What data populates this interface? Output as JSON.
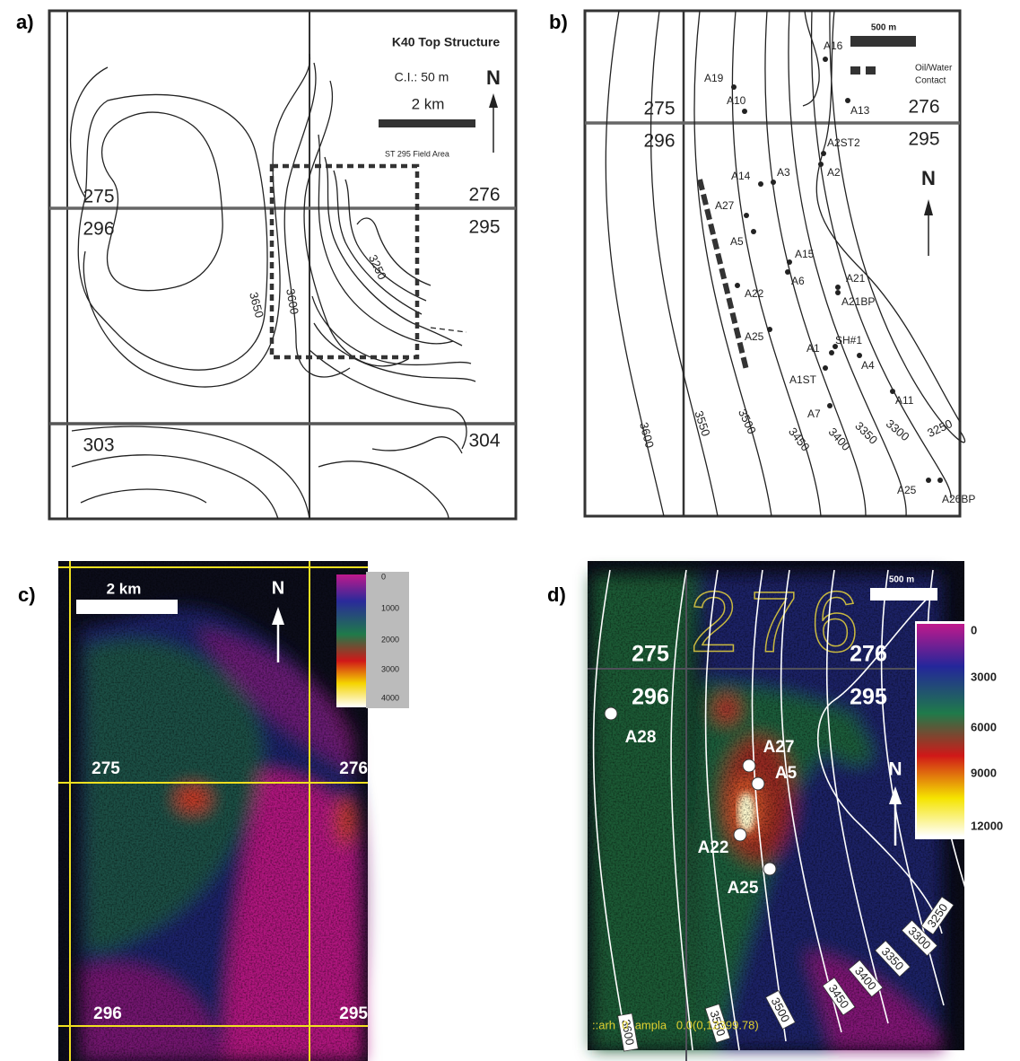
{
  "panels": [
    {
      "label": "a)",
      "title": "K40 Top Structure",
      "contour_interval": "C.I.: 50 m",
      "scale": "2 km",
      "north": "N",
      "field_area": "ST 295 Field Area",
      "blocks": [
        "275",
        "296",
        "276",
        "295",
        "303",
        "304"
      ],
      "contour_labels": [
        "3650",
        "3600",
        "3250"
      ]
    },
    {
      "label": "b)",
      "scale": "500 m",
      "legend": [
        "Oil/Water",
        "Contact"
      ],
      "north": "N",
      "blocks": [
        "275",
        "296",
        "276",
        "295"
      ],
      "wells": [
        "A19",
        "A10",
        "A16",
        "A13",
        "A2ST2",
        "A2",
        "A14",
        "A3",
        "A27",
        "A5",
        "A15",
        "A6",
        "A21",
        "A21BP",
        "A22",
        "A25",
        "A1",
        "SH#1",
        "A1ST",
        "A4",
        "A11",
        "A7",
        "A25",
        "A26BP"
      ],
      "contour_labels": [
        "3600",
        "3550",
        "3500",
        "3450",
        "3400",
        "3350",
        "3300",
        "3250"
      ]
    },
    {
      "label": "c)",
      "scale": "2 km",
      "north": "N",
      "blocks": [
        "275",
        "276",
        "296",
        "295"
      ],
      "colorbar": [
        "0",
        "1000",
        "2000",
        "3000",
        "4000"
      ]
    },
    {
      "label": "d)",
      "scale": "500 m",
      "north": "N",
      "watermark": "276",
      "blocks": [
        "275",
        "276",
        "296",
        "295"
      ],
      "wells": [
        "A28",
        "A27",
        "A5",
        "A22",
        "A25"
      ],
      "colorbar": [
        "0",
        "3000",
        "6000",
        "9000",
        "12000"
      ],
      "contour_labels": [
        "3600",
        "3550",
        "3500",
        "3450",
        "3400",
        "3350",
        "3300",
        "3250"
      ],
      "footer": "::arh  0  ampla   0.0(0,12399.78)"
    }
  ]
}
